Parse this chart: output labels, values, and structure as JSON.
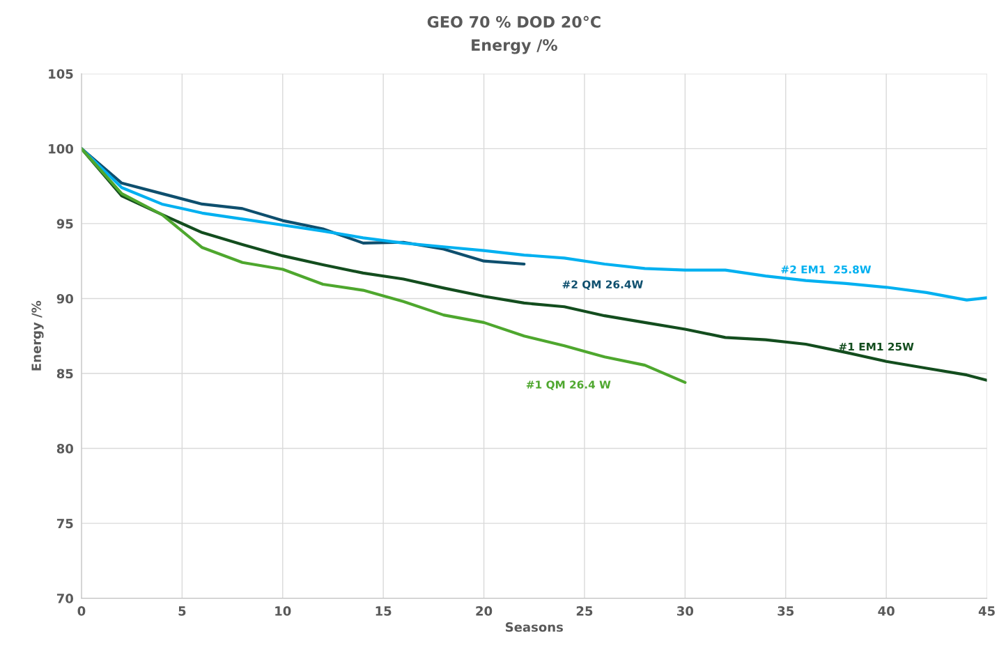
{
  "chart_data": {
    "type": "line",
    "title": "GEO 70 % DOD 20°C",
    "subtitle": "Energy /%",
    "xlabel": "Seasons",
    "ylabel": "Energy /%",
    "xlim": [
      0,
      45
    ],
    "xticks": [
      0,
      5,
      10,
      15,
      20,
      25,
      30,
      35,
      40,
      45
    ],
    "ylim": [
      70,
      105
    ],
    "yticks": [
      70,
      75,
      80,
      85,
      90,
      95,
      100,
      105
    ],
    "grid": true,
    "legend": false,
    "marker": "none",
    "line_style": "solid",
    "series": [
      {
        "name": "#2 QM 26.4W",
        "color": "#0e4f6e",
        "x": [
          0,
          2,
          4,
          6,
          8,
          10,
          12,
          14,
          16,
          18,
          20,
          22
        ],
        "values": [
          100,
          97.7,
          97.0,
          96.3,
          96.0,
          95.2,
          94.65,
          93.7,
          93.75,
          93.3,
          92.5,
          92.3
        ]
      },
      {
        "name": "#2 EM1  25.8W",
        "color": "#00b0f0",
        "x": [
          0,
          2,
          4,
          6,
          8,
          10,
          12,
          14,
          16,
          18,
          20,
          22,
          24,
          26,
          28,
          30,
          32,
          34,
          36,
          38,
          40,
          42,
          44,
          45
        ],
        "values": [
          100,
          97.4,
          96.3,
          95.7,
          95.3,
          94.9,
          94.5,
          94.05,
          93.7,
          93.45,
          93.2,
          92.9,
          92.7,
          92.3,
          92.0,
          91.9,
          91.9,
          91.5,
          91.2,
          91.0,
          90.75,
          90.4,
          89.9,
          90.05
        ]
      },
      {
        "name": "#1 EM1 25W",
        "color": "#134d1e",
        "x": [
          0,
          2,
          4,
          6,
          8,
          10,
          12,
          14,
          16,
          18,
          20,
          22,
          24,
          26,
          28,
          30,
          32,
          34,
          36,
          38,
          40,
          42,
          44,
          45
        ],
        "values": [
          100,
          96.85,
          95.6,
          94.4,
          93.6,
          92.85,
          92.25,
          91.7,
          91.3,
          90.7,
          90.15,
          89.7,
          89.45,
          88.85,
          88.4,
          87.95,
          87.4,
          87.25,
          86.95,
          86.4,
          85.8,
          85.35,
          84.9,
          84.55
        ]
      },
      {
        "name": "#1 QM 26.4 W",
        "color": "#4ea72e",
        "x": [
          0,
          2,
          4,
          6,
          8,
          10,
          12,
          14,
          16,
          18,
          20,
          22,
          24,
          26,
          28,
          30
        ],
        "values": [
          100,
          97.0,
          95.6,
          93.4,
          92.4,
          91.95,
          90.95,
          90.55,
          89.8,
          88.9,
          88.4,
          87.5,
          86.85,
          86.1,
          85.55,
          84.4
        ]
      }
    ]
  }
}
